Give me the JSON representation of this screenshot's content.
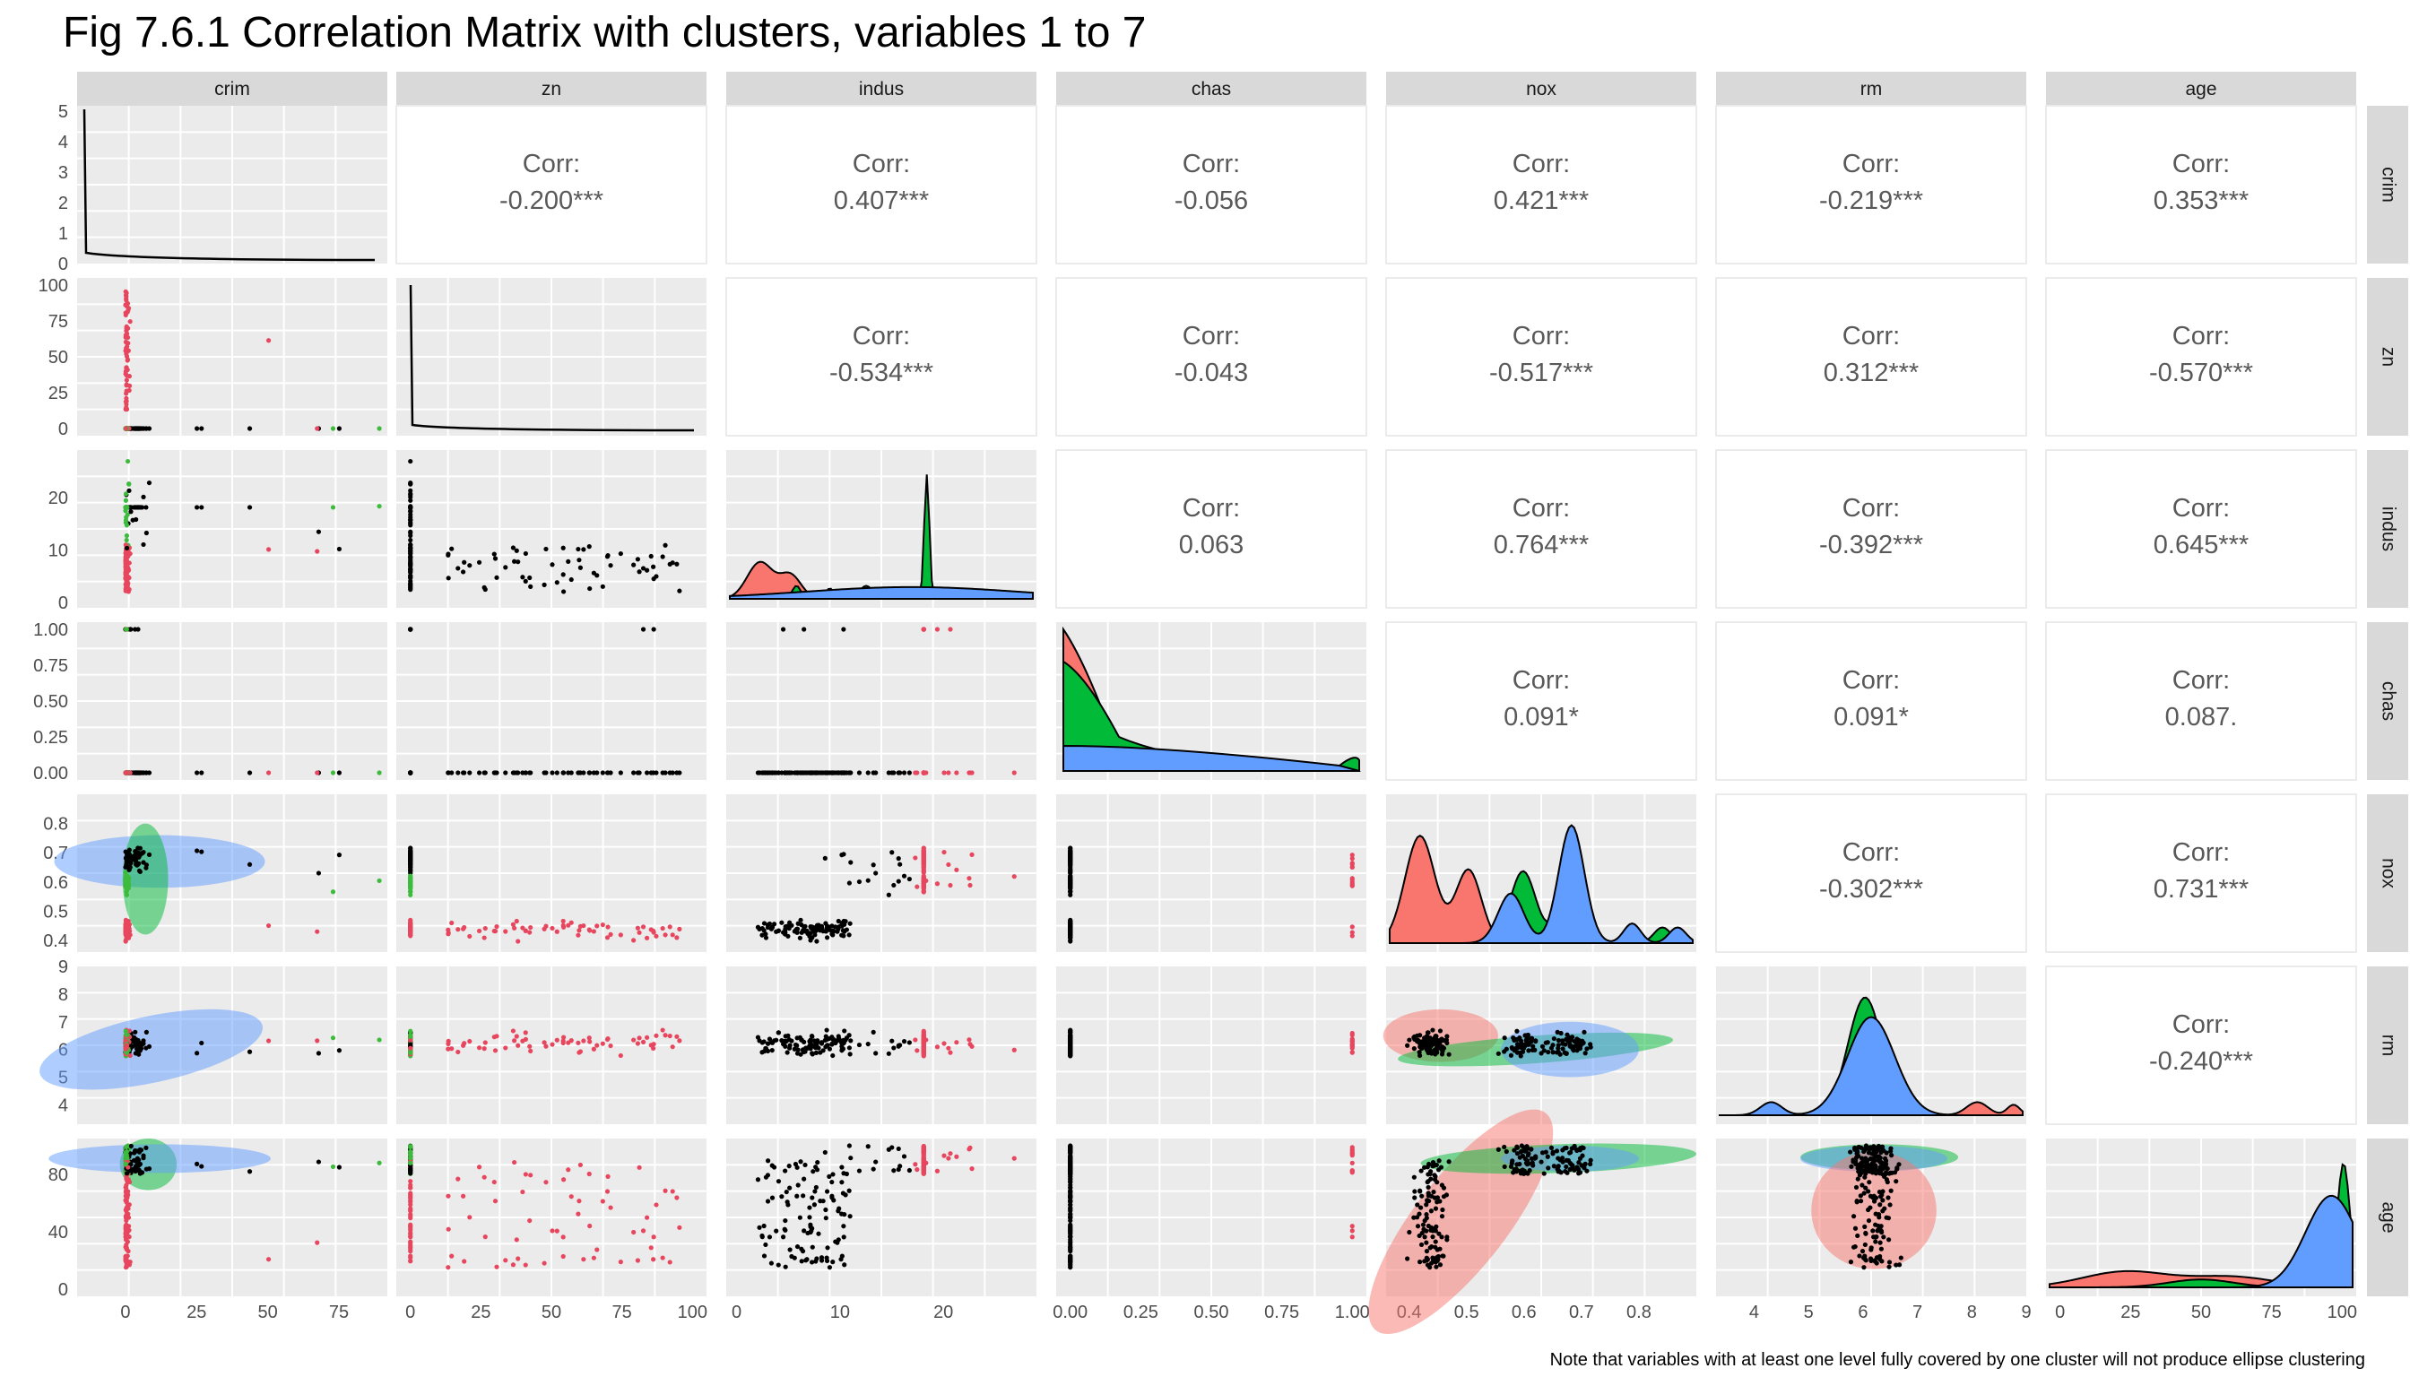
{
  "title": "Fig 7.6.1 Correlation Matrix with clusters, variables 1 to 7",
  "caption": "Note that variables with at least one level fully covered by one cluster will not produce ellipse clustering",
  "corr_label": "Corr:",
  "variables": [
    "crim",
    "zn",
    "indus",
    "chas",
    "nox",
    "rm",
    "age"
  ],
  "colors": {
    "cluster1": "#F8766D",
    "cluster2": "#00BA38",
    "cluster3": "#619CFF",
    "points_neutral": "#000000",
    "points_cluster1": "#E7475E",
    "points_cluster2": "#3DBB3D",
    "panel_bg": "#EBEBEB",
    "strip_bg": "#D9D9D9"
  },
  "x_ticks": [
    [
      "0",
      "25",
      "50",
      "75"
    ],
    [
      "0",
      "25",
      "50",
      "75",
      "100"
    ],
    [
      "0",
      "10",
      "20"
    ],
    [
      "0.00",
      "0.25",
      "0.50",
      "0.75",
      "1.00"
    ],
    [
      "0.4",
      "0.5",
      "0.6",
      "0.7",
      "0.8"
    ],
    [
      "4",
      "5",
      "6",
      "7",
      "8",
      "9"
    ],
    [
      "0",
      "25",
      "50",
      "75",
      "100"
    ]
  ],
  "y_ticks": [
    [
      "0",
      "1",
      "2",
      "3",
      "4",
      "5"
    ],
    [
      "0",
      "25",
      "50",
      "75",
      "100"
    ],
    [
      "0",
      "10",
      "20"
    ],
    [
      "0.00",
      "0.25",
      "0.50",
      "0.75",
      "1.00"
    ],
    [
      "0.4",
      "0.5",
      "0.6",
      "0.7",
      "0.8"
    ],
    [
      "4",
      "5",
      "6",
      "7",
      "8",
      "9"
    ],
    [
      "0",
      "40",
      "80"
    ]
  ],
  "chart_data": {
    "type": "scatter",
    "layout": "pairs-matrix",
    "variables": [
      "crim",
      "zn",
      "indus",
      "chas",
      "nox",
      "rm",
      "age"
    ],
    "axis_ranges": {
      "crim": [
        -17,
        92
      ],
      "zn": [
        -5,
        105
      ],
      "indus": [
        -1,
        29
      ],
      "chas": [
        -0.05,
        1.05
      ],
      "nox": [
        0.36,
        0.9
      ],
      "rm": [
        3.3,
        9.0
      ],
      "age": [
        -5,
        105
      ]
    },
    "correlations": [
      {
        "row": "crim",
        "col": "zn",
        "value": "-0.200***"
      },
      {
        "row": "crim",
        "col": "indus",
        "value": "0.407***"
      },
      {
        "row": "crim",
        "col": "chas",
        "value": "-0.056"
      },
      {
        "row": "crim",
        "col": "nox",
        "value": "0.421***"
      },
      {
        "row": "crim",
        "col": "rm",
        "value": "-0.219***"
      },
      {
        "row": "crim",
        "col": "age",
        "value": "0.353***"
      },
      {
        "row": "zn",
        "col": "indus",
        "value": "-0.534***"
      },
      {
        "row": "zn",
        "col": "chas",
        "value": "-0.043"
      },
      {
        "row": "zn",
        "col": "nox",
        "value": "-0.517***"
      },
      {
        "row": "zn",
        "col": "rm",
        "value": "0.312***"
      },
      {
        "row": "zn",
        "col": "age",
        "value": "-0.570***"
      },
      {
        "row": "indus",
        "col": "chas",
        "value": "0.063"
      },
      {
        "row": "indus",
        "col": "nox",
        "value": "0.764***"
      },
      {
        "row": "indus",
        "col": "rm",
        "value": "-0.392***"
      },
      {
        "row": "indus",
        "col": "age",
        "value": "0.645***"
      },
      {
        "row": "chas",
        "col": "nox",
        "value": "0.091*"
      },
      {
        "row": "chas",
        "col": "rm",
        "value": "0.091*"
      },
      {
        "row": "chas",
        "col": "age",
        "value": "0.087."
      },
      {
        "row": "nox",
        "col": "rm",
        "value": "-0.302***"
      },
      {
        "row": "nox",
        "col": "age",
        "value": "0.731***"
      },
      {
        "row": "rm",
        "col": "age",
        "value": "-0.240***"
      }
    ],
    "ellipses": [
      {
        "x": "crim",
        "y": "nox",
        "cluster": 3,
        "cx": 12,
        "cy": 0.67,
        "rx": 37,
        "ry": 0.09,
        "angle": 0
      },
      {
        "x": "crim",
        "y": "nox",
        "cluster": 2,
        "cx": 7,
        "cy": 0.61,
        "rx": 8,
        "ry": 0.19,
        "angle": 0
      },
      {
        "x": "crim",
        "y": "rm",
        "cluster": 3,
        "cx": 9,
        "cy": 6.0,
        "rx": 40,
        "ry": 1.2,
        "angle": -12
      },
      {
        "x": "crim",
        "y": "age",
        "cluster": 2,
        "cx": 8,
        "cy": 87,
        "rx": 10,
        "ry": 18,
        "angle": 0
      },
      {
        "x": "crim",
        "y": "age",
        "cluster": 3,
        "cx": 12,
        "cy": 91,
        "rx": 39,
        "ry": 10,
        "angle": 0
      },
      {
        "x": "nox",
        "y": "rm",
        "cluster": 1,
        "cx": 0.455,
        "cy": 6.5,
        "rx": 0.1,
        "ry": 0.95,
        "angle": 0
      },
      {
        "x": "nox",
        "y": "rm",
        "cluster": 2,
        "cx": 0.62,
        "cy": 6.0,
        "rx": 0.24,
        "ry": 0.5,
        "angle": -4
      },
      {
        "x": "nox",
        "y": "rm",
        "cluster": 3,
        "cx": 0.68,
        "cy": 6.0,
        "rx": 0.12,
        "ry": 1.0,
        "angle": 0
      },
      {
        "x": "nox",
        "y": "age",
        "cluster": 1,
        "cx": 0.49,
        "cy": 47,
        "rx": 0.24,
        "ry": 32,
        "angle": -52
      },
      {
        "x": "nox",
        "y": "age",
        "cluster": 2,
        "cx": 0.66,
        "cy": 91,
        "rx": 0.24,
        "ry": 10,
        "angle": -2
      },
      {
        "x": "nox",
        "y": "age",
        "cluster": 3,
        "cx": 0.68,
        "cy": 91,
        "rx": 0.12,
        "ry": 9,
        "angle": 0
      },
      {
        "x": "rm",
        "y": "age",
        "cluster": 2,
        "cx": 6.3,
        "cy": 92,
        "rx": 1.45,
        "ry": 9,
        "angle": 0
      },
      {
        "x": "rm",
        "y": "age",
        "cluster": 3,
        "cx": 6.2,
        "cy": 91,
        "rx": 1.35,
        "ry": 9,
        "angle": 0
      },
      {
        "x": "rm",
        "y": "age",
        "cluster": 1,
        "cx": 6.2,
        "cy": 55,
        "rx": 1.15,
        "ry": 41,
        "angle": 0
      }
    ]
  }
}
